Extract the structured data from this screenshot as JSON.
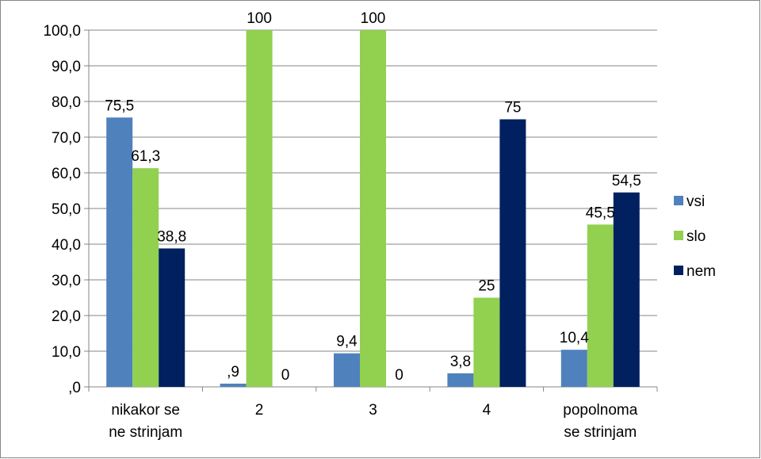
{
  "chart_data": {
    "type": "bar",
    "categories": [
      [
        "nikakor se",
        "ne strinjam"
      ],
      [
        "2"
      ],
      [
        "3"
      ],
      [
        "4"
      ],
      [
        "popolnoma",
        "se strinjam"
      ]
    ],
    "series": [
      {
        "name": "vsi",
        "color": "#4F81BD",
        "values": [
          75.5,
          0.9,
          9.4,
          3.8,
          10.4
        ],
        "labels": [
          "75,5",
          ",9",
          "9,4",
          "3,8",
          "10,4"
        ]
      },
      {
        "name": "slo",
        "color": "#92D050",
        "values": [
          61.3,
          100,
          100,
          25,
          45.5
        ],
        "labels": [
          "61,3",
          "100",
          "100",
          "25",
          "45,5"
        ]
      },
      {
        "name": "nem",
        "color": "#002060",
        "values": [
          38.8,
          0,
          0,
          75,
          54.5
        ],
        "labels": [
          "38,8",
          "0",
          "0",
          "75",
          "54,5"
        ]
      }
    ],
    "y_ticks": [
      ",0",
      "10,0",
      "20,0",
      "30,0",
      "40,0",
      "50,0",
      "60,0",
      "70,0",
      "80,0",
      "90,0",
      "100,0"
    ],
    "ylim": [
      0,
      100
    ],
    "grid": true,
    "legend_position": "right",
    "gridline_color": "#868686",
    "frame_color": "#868686"
  }
}
